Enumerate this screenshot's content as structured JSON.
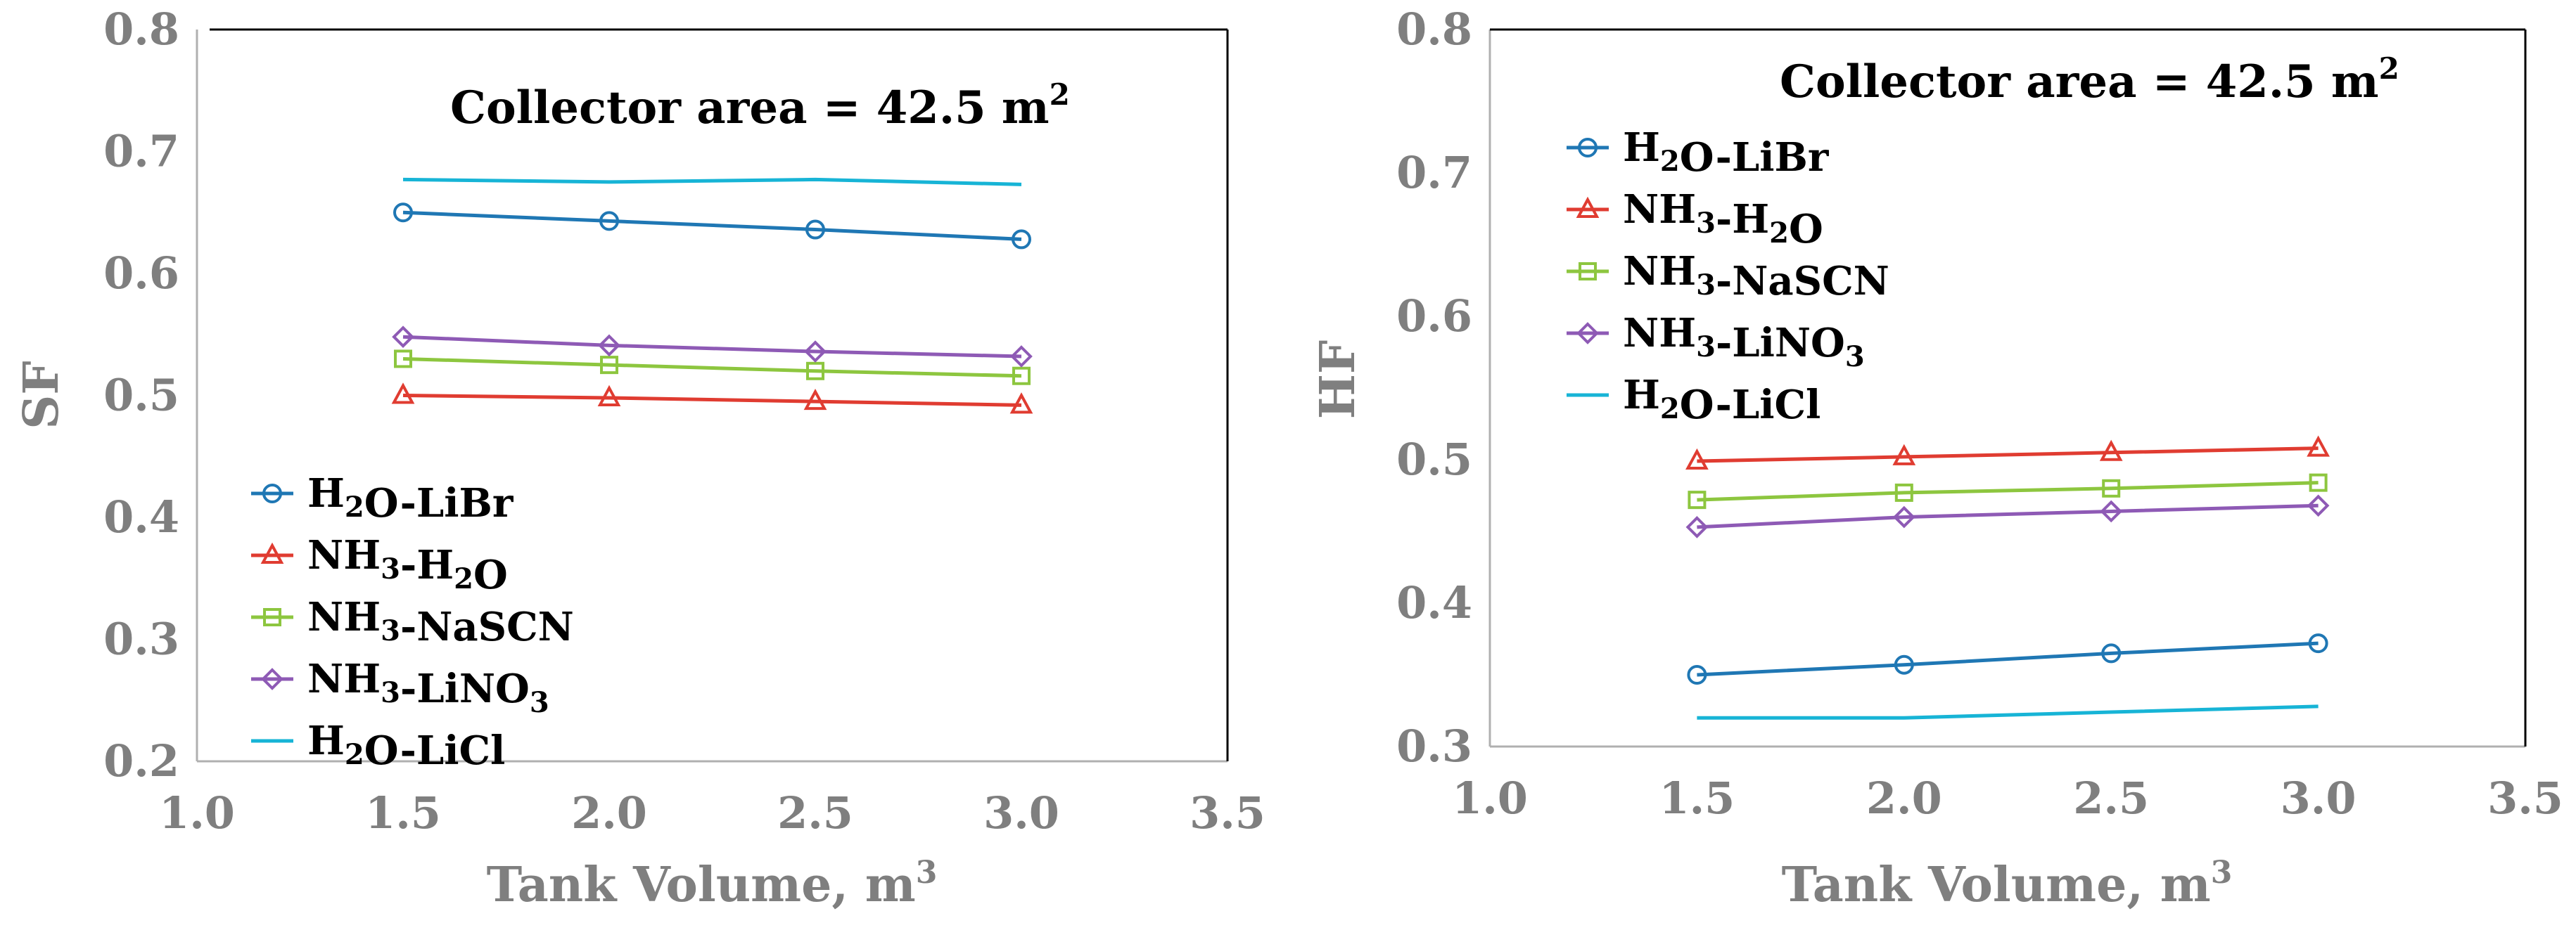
{
  "chart_data": [
    {
      "type": "line",
      "title": "",
      "annotation": "Collector area = 42.5 m",
      "annotation_sup": "2",
      "xlabel": "Tank Volume, m",
      "xlabel_sup": "3",
      "ylabel": "SF",
      "xlim": [
        1.0,
        3.5
      ],
      "ylim": [
        0.2,
        0.8
      ],
      "xticks": [
        "1.0",
        "1.5",
        "2.0",
        "2.5",
        "3.0",
        "3.5"
      ],
      "yticks": [
        "0.2",
        "0.3",
        "0.4",
        "0.5",
        "0.6",
        "0.7",
        "0.8"
      ],
      "legend_position": "bottom-left",
      "x": [
        1.5,
        2.0,
        2.5,
        3.0
      ],
      "series": [
        {
          "name": "H2O-LiBr",
          "label_parts": [
            [
              "H"
            ],
            [
              "2",
              "sub"
            ],
            [
              "O-LiBr"
            ]
          ],
          "color": "#1f77b4",
          "marker": "circle",
          "values": [
            0.65,
            0.643,
            0.636,
            0.628
          ]
        },
        {
          "name": "NH3-H2O",
          "label_parts": [
            [
              "NH"
            ],
            [
              "3",
              "sub"
            ],
            [
              "-H"
            ],
            [
              "2",
              "sub"
            ],
            [
              "O"
            ]
          ],
          "color": "#e03c31",
          "marker": "triangle",
          "values": [
            0.5,
            0.498,
            0.495,
            0.492
          ]
        },
        {
          "name": "NH3-NaSCN",
          "label_parts": [
            [
              "NH"
            ],
            [
              "3",
              "sub"
            ],
            [
              "-NaSCN"
            ]
          ],
          "color": "#8dc63f",
          "marker": "square",
          "values": [
            0.53,
            0.525,
            0.52,
            0.516
          ]
        },
        {
          "name": "NH3-LiNO3",
          "label_parts": [
            [
              "NH"
            ],
            [
              "3",
              "sub"
            ],
            [
              "-LiNO"
            ],
            [
              "3",
              "sub"
            ]
          ],
          "color": "#8e5ab5",
          "marker": "diamond",
          "values": [
            0.548,
            0.541,
            0.536,
            0.532
          ]
        },
        {
          "name": "H2O-LiCl",
          "label_parts": [
            [
              "H"
            ],
            [
              "2",
              "sub"
            ],
            [
              "O-LiCl"
            ]
          ],
          "color": "#17b4d6",
          "marker": "none",
          "values": [
            0.677,
            0.675,
            0.677,
            0.673
          ]
        }
      ]
    },
    {
      "type": "line",
      "title": "",
      "annotation": "Collector area = 42.5 m",
      "annotation_sup": "2",
      "xlabel": "Tank Volume, m",
      "xlabel_sup": "3",
      "ylabel": "HF",
      "xlim": [
        1.0,
        3.5
      ],
      "ylim": [
        0.3,
        0.8
      ],
      "xticks": [
        "1.0",
        "1.5",
        "2.0",
        "2.5",
        "3.0",
        "3.5"
      ],
      "yticks": [
        "0.3",
        "0.4",
        "0.5",
        "0.6",
        "0.7",
        "0.8"
      ],
      "legend_position": "top-left",
      "x": [
        1.5,
        2.0,
        2.5,
        3.0
      ],
      "series": [
        {
          "name": "H2O-LiBr",
          "label_parts": [
            [
              "H"
            ],
            [
              "2",
              "sub"
            ],
            [
              "O-LiBr"
            ]
          ],
          "color": "#1f77b4",
          "marker": "circle",
          "values": [
            0.35,
            0.357,
            0.365,
            0.372
          ]
        },
        {
          "name": "NH3-H2O",
          "label_parts": [
            [
              "NH"
            ],
            [
              "3",
              "sub"
            ],
            [
              "-H"
            ],
            [
              "2",
              "sub"
            ],
            [
              "O"
            ]
          ],
          "color": "#e03c31",
          "marker": "triangle",
          "values": [
            0.499,
            0.502,
            0.505,
            0.508
          ]
        },
        {
          "name": "NH3-NaSCN",
          "label_parts": [
            [
              "NH"
            ],
            [
              "3",
              "sub"
            ],
            [
              "-NaSCN"
            ]
          ],
          "color": "#8dc63f",
          "marker": "square",
          "values": [
            0.472,
            0.477,
            0.48,
            0.484
          ]
        },
        {
          "name": "NH3-LiNO3",
          "label_parts": [
            [
              "NH"
            ],
            [
              "3",
              "sub"
            ],
            [
              "-LiNO"
            ],
            [
              "3",
              "sub"
            ]
          ],
          "color": "#8e5ab5",
          "marker": "diamond",
          "values": [
            0.453,
            0.46,
            0.464,
            0.468
          ]
        },
        {
          "name": "H2O-LiCl",
          "label_parts": [
            [
              "H"
            ],
            [
              "2",
              "sub"
            ],
            [
              "O-LiCl"
            ]
          ],
          "color": "#17b4d6",
          "marker": "none",
          "values": [
            0.32,
            0.32,
            0.324,
            0.328
          ]
        }
      ]
    }
  ]
}
